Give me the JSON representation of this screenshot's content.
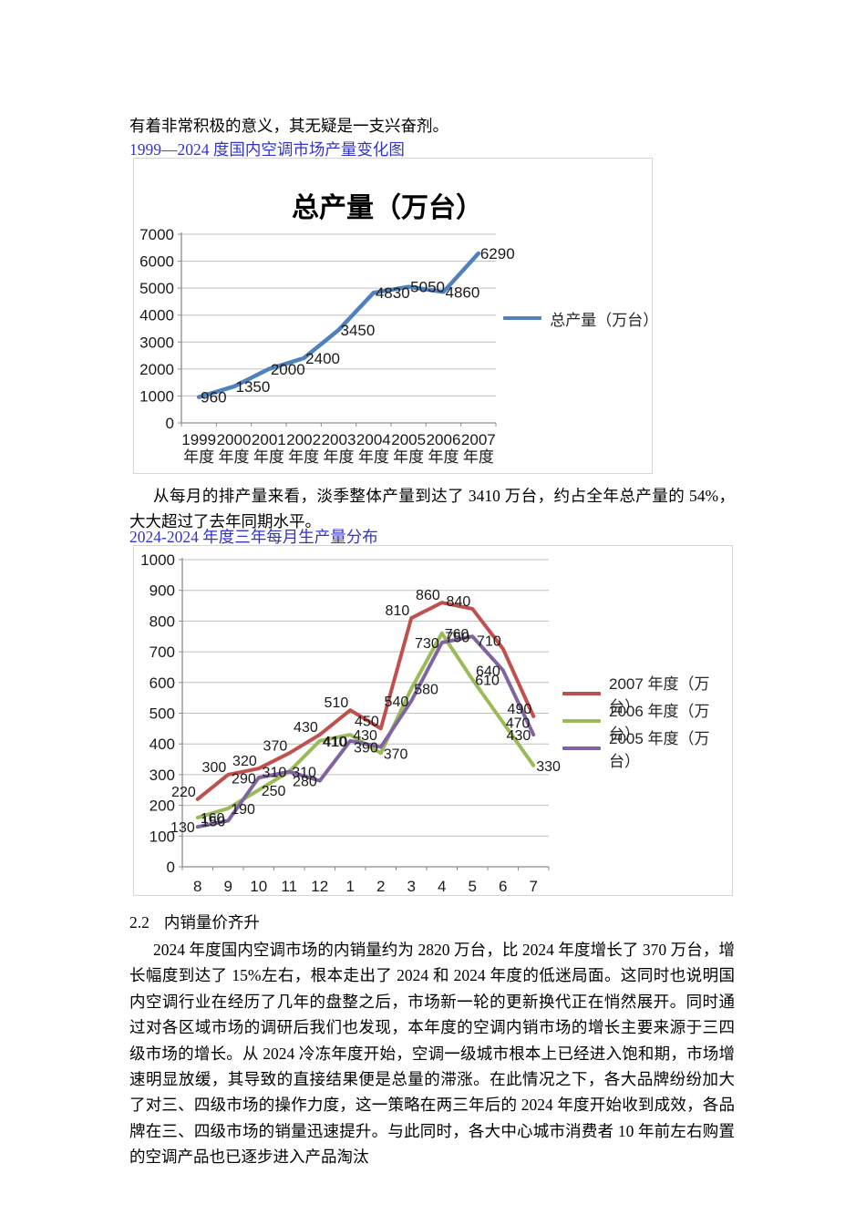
{
  "document": {
    "intro_line": "有着非常积极的意义，其无疑是一支兴奋剂。",
    "figure1_link": "1999—2024 度国内空调市场产量变化图",
    "paragraph1": "从每月的排产量来看，淡季整体产量到达了 3410 万台，约占全年总产量的 54%，大大超过了去年同期水平。",
    "figure2_link": "2024-2024 年度三年每月生产量分布",
    "section_number": "2.2",
    "section_title": "内销量价齐升",
    "paragraph2": "2024 年度国内空调市场的内销量约为 2820 万台，比 2024 年度增长了 370 万台，增长幅度到达了 15%左右，根本走出了 2024 和 2024 年度的低迷局面。这同时也说明国内空调行业在经历了几年的盘整之后，市场新一轮的更新换代正在悄然展开。同时通过对各区域市场的调研后我们也发现，本年度的空调内销市场的增长主要来源于三四级市场的增长。从 2024 冷冻年度开始，空调一级城市根本上已经进入饱和期，市场增速明显放缓，其导致的直接结果便是总量的滞涨。在此情况之下，各大品牌纷纷加大了对三、四级市场的操作力度，这一策略在两三年后的 2024 年度开始收到成效，各品牌在三、四级市场的销量迅速提升。与此同时，各大中心城市消费者 10 年前左右购置的空调产品也已逐步进入产品淘汰",
    "link_color": "#3333CC"
  },
  "chart_data": [
    {
      "type": "line",
      "title": "总产量（万台）",
      "categories": [
        "1999",
        "2000",
        "2001",
        "2002",
        "2003",
        "2004",
        "2005",
        "2006",
        "2007"
      ],
      "category_suffix": "年度",
      "series": [
        {
          "name": "总产量（万台）",
          "color": "#4F81BD",
          "values": [
            960,
            1350,
            2000,
            2400,
            3450,
            4830,
            5050,
            4860,
            6290
          ]
        }
      ],
      "ylim": [
        0,
        7000
      ],
      "ytick_step": 1000,
      "grid": true,
      "legend_position": "right"
    },
    {
      "type": "line",
      "title": "",
      "categories": [
        "8",
        "9",
        "10",
        "11",
        "12",
        "1",
        "2",
        "3",
        "4",
        "5",
        "6",
        "7"
      ],
      "series": [
        {
          "name": "2007 年度（万台）",
          "color": "#C0504D",
          "values": [
            220,
            300,
            320,
            370,
            430,
            510,
            450,
            810,
            860,
            840,
            710,
            490
          ]
        },
        {
          "name": "2006 年度（万台）",
          "color": "#9BBB59",
          "values": [
            160,
            190,
            250,
            310,
            410,
            430,
            370,
            580,
            760,
            610,
            470,
            330
          ]
        },
        {
          "name": "2005 年度（万台）",
          "color": "#8064A2",
          "values": [
            130,
            150,
            290,
            310,
            280,
            410,
            390,
            540,
            730,
            750,
            640,
            430
          ]
        }
      ],
      "ylim": [
        0,
        1000
      ],
      "ytick_step": 100,
      "grid": true,
      "legend_position": "right"
    }
  ]
}
